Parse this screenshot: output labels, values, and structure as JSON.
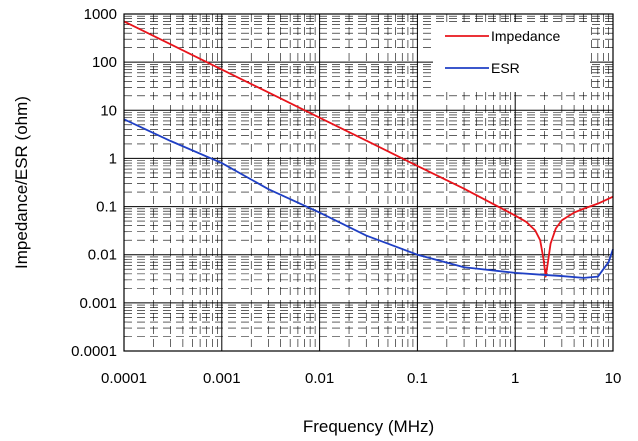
{
  "chart_data": {
    "type": "line",
    "xlabel": "Frequency (MHz)",
    "ylabel": "Impedance/ESR (ohm)",
    "xscale": "log",
    "yscale": "log",
    "xlim": [
      0.0001,
      10
    ],
    "ylim": [
      0.0001,
      1000
    ],
    "grid": true,
    "legend_position": "top-right",
    "x_tick_labels": [
      "0.0001",
      "0.001",
      "0.01",
      "0.1",
      "1",
      "10"
    ],
    "y_tick_labels": [
      "0.0001",
      "0.001",
      "0.01",
      "0.1",
      "1",
      "10",
      "100",
      "1000"
    ],
    "series": [
      {
        "name": "Impedance",
        "color": "#e8141b",
        "x": [
          0.0001,
          0.0003,
          0.001,
          0.003,
          0.01,
          0.03,
          0.1,
          0.3,
          1,
          1.3,
          1.6,
          1.8,
          1.95,
          2.05,
          2.15,
          2.3,
          2.6,
          3,
          4,
          5,
          7,
          10
        ],
        "y": [
          700,
          235,
          70,
          23.5,
          7,
          2.35,
          0.7,
          0.235,
          0.065,
          0.048,
          0.032,
          0.02,
          0.008,
          0.0035,
          0.0065,
          0.017,
          0.035,
          0.052,
          0.075,
          0.09,
          0.115,
          0.16
        ]
      },
      {
        "name": "ESR",
        "color": "#1f3fc4",
        "x": [
          0.0001,
          0.0003,
          0.001,
          0.003,
          0.01,
          0.03,
          0.1,
          0.3,
          1,
          2,
          3,
          5,
          7,
          9,
          10
        ],
        "y": [
          6.5,
          2.3,
          0.8,
          0.23,
          0.075,
          0.025,
          0.01,
          0.0055,
          0.0042,
          0.0038,
          0.0036,
          0.0033,
          0.0035,
          0.007,
          0.013
        ]
      }
    ]
  }
}
